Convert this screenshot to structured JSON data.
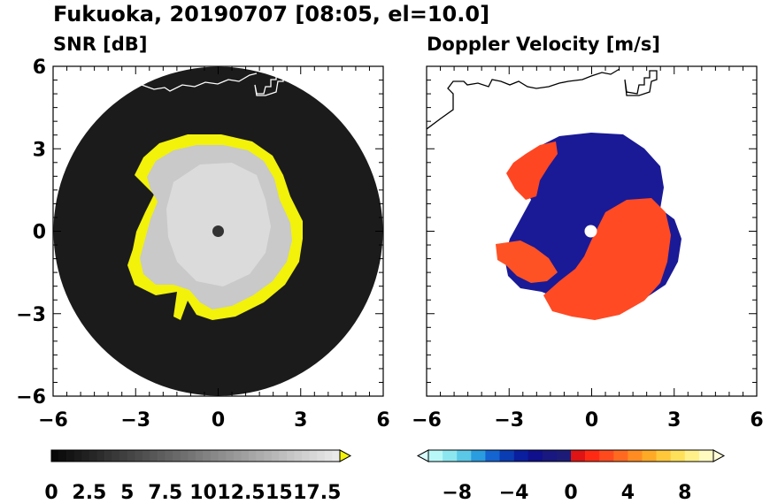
{
  "figure": {
    "title": "Fukuoka, 20190707 [08:05, el=10.0]"
  },
  "chart_data": [
    {
      "type": "heatmap",
      "title": "SNR [dB]",
      "xlim": [
        -6,
        6
      ],
      "ylim": [
        -6,
        6
      ],
      "x_ticks": [
        "−6",
        "−3",
        "0",
        "3",
        "6"
      ],
      "y_ticks": [
        "6",
        "3",
        "0",
        "−3",
        "−6"
      ],
      "colorbar": {
        "range": [
          0,
          19
        ],
        "ticks": [
          "0",
          "2.5",
          "5",
          "7.5",
          "10",
          "12.5",
          "15",
          "17.5"
        ],
        "extend": "max"
      },
      "colors": {
        "background": "#1a1a1a",
        "core": "#c8c8c8",
        "edge": "#f2f20a",
        "marker": "#333333",
        "coast": "#ffffff"
      }
    },
    {
      "type": "heatmap",
      "title": "Doppler Velocity [m/s]",
      "xlim": [
        -6,
        6
      ],
      "ylim": [
        -6,
        6
      ],
      "x_ticks": [
        "−6",
        "−3",
        "0",
        "3",
        "6"
      ],
      "y_ticks": [],
      "colorbar": {
        "range": [
          -10,
          10
        ],
        "ticks": [
          "−8",
          "−4",
          "0",
          "4",
          "8"
        ],
        "extend": "both"
      },
      "colors": {
        "negative": "#1a1a9a",
        "positive": "#ff4a22",
        "coast": "#000000"
      }
    }
  ]
}
